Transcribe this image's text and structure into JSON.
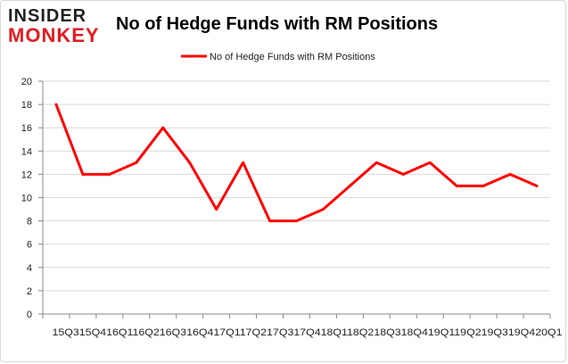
{
  "logo": {
    "line1": "INSIDER",
    "line2": "MONKEY"
  },
  "chart_data": {
    "type": "line",
    "title": "No of Hedge Funds with RM Positions",
    "categories": [
      "2015Q3",
      "2015Q4",
      "2016Q1",
      "2016Q2",
      "2016Q3",
      "2016Q4",
      "2017Q1",
      "2017Q2",
      "2017Q3",
      "2017Q4",
      "2018Q1",
      "2018Q2",
      "2018Q3",
      "2018Q4",
      "2019Q1",
      "2019Q2",
      "2019Q3",
      "2019Q4",
      "2020Q1"
    ],
    "x_tick_text": "15Q315Q416Q116Q216Q316Q417Q117Q217Q317Q418Q118Q218Q318Q419Q119Q219Q319Q420Q1",
    "series": [
      {
        "name": "No of Hedge Funds with RM Positions",
        "values": [
          18,
          12,
          12,
          13,
          16,
          13,
          9,
          13,
          8,
          8,
          9,
          11,
          13,
          12,
          13,
          11,
          11,
          12,
          11
        ],
        "color": "#ff0000"
      }
    ],
    "ylim": [
      0,
      20
    ],
    "yticks": [
      0,
      2,
      4,
      6,
      8,
      10,
      12,
      14,
      16,
      18,
      20
    ],
    "grid": true,
    "legend": "top-center"
  }
}
